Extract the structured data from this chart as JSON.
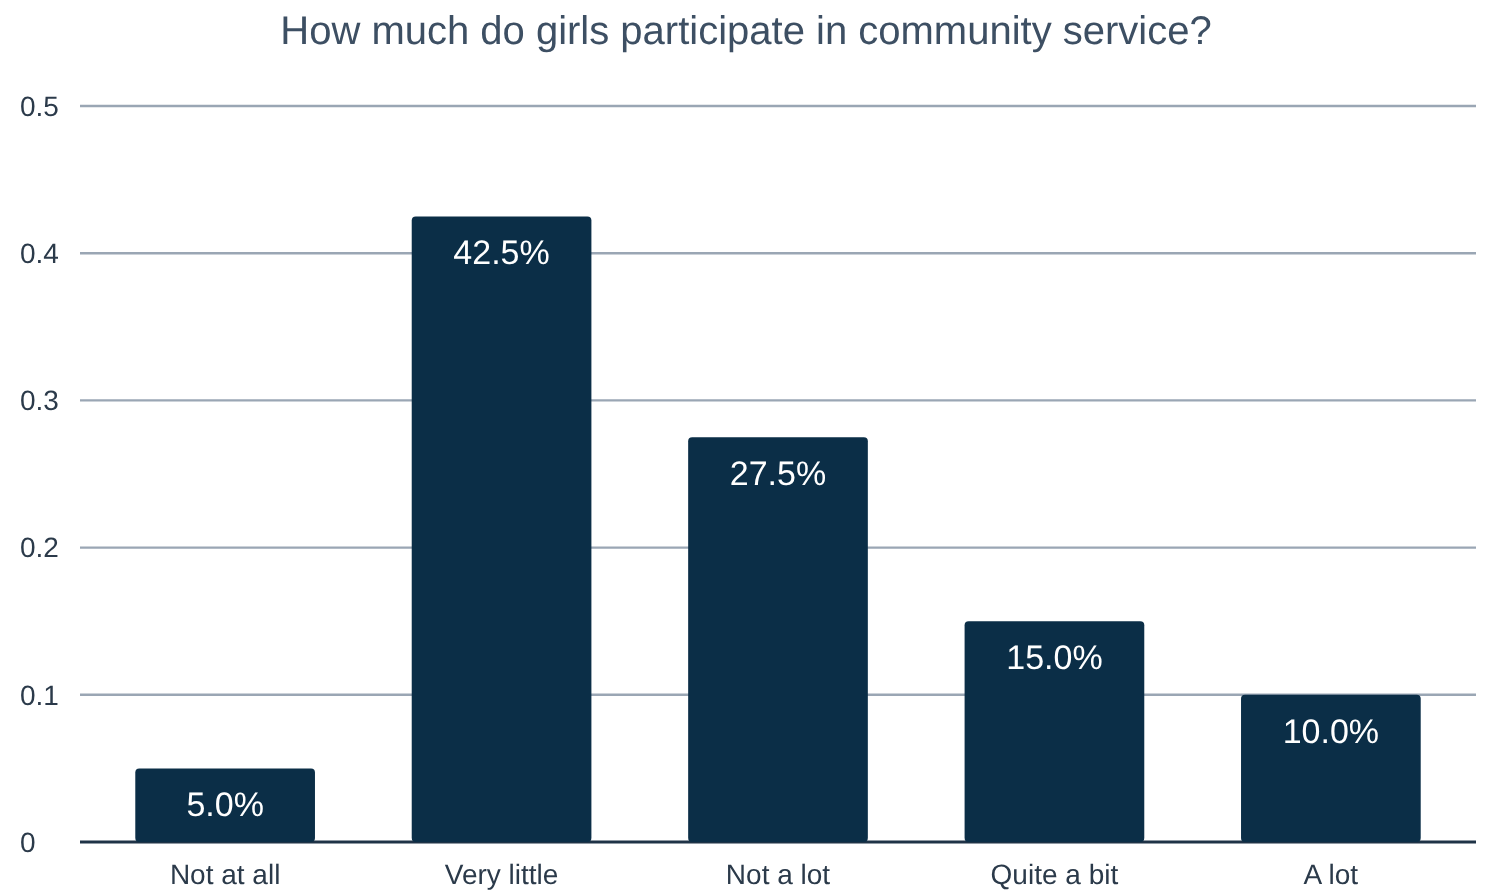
{
  "chart_data": {
    "type": "bar",
    "title": "How much do girls participate in community service?",
    "categories": [
      "Not at all",
      "Very little",
      "Not a lot",
      "Quite a bit",
      "A lot"
    ],
    "values": [
      0.05,
      0.425,
      0.275,
      0.15,
      0.1
    ],
    "value_labels": [
      "5.0%",
      "42.5%",
      "27.5%",
      "15.0%",
      "10.0%"
    ],
    "color": "#0b2e47",
    "ylim": [
      0,
      0.5
    ],
    "yticks": [
      0,
      0.1,
      0.2,
      0.3,
      0.4,
      0.5
    ],
    "grid": "y"
  }
}
